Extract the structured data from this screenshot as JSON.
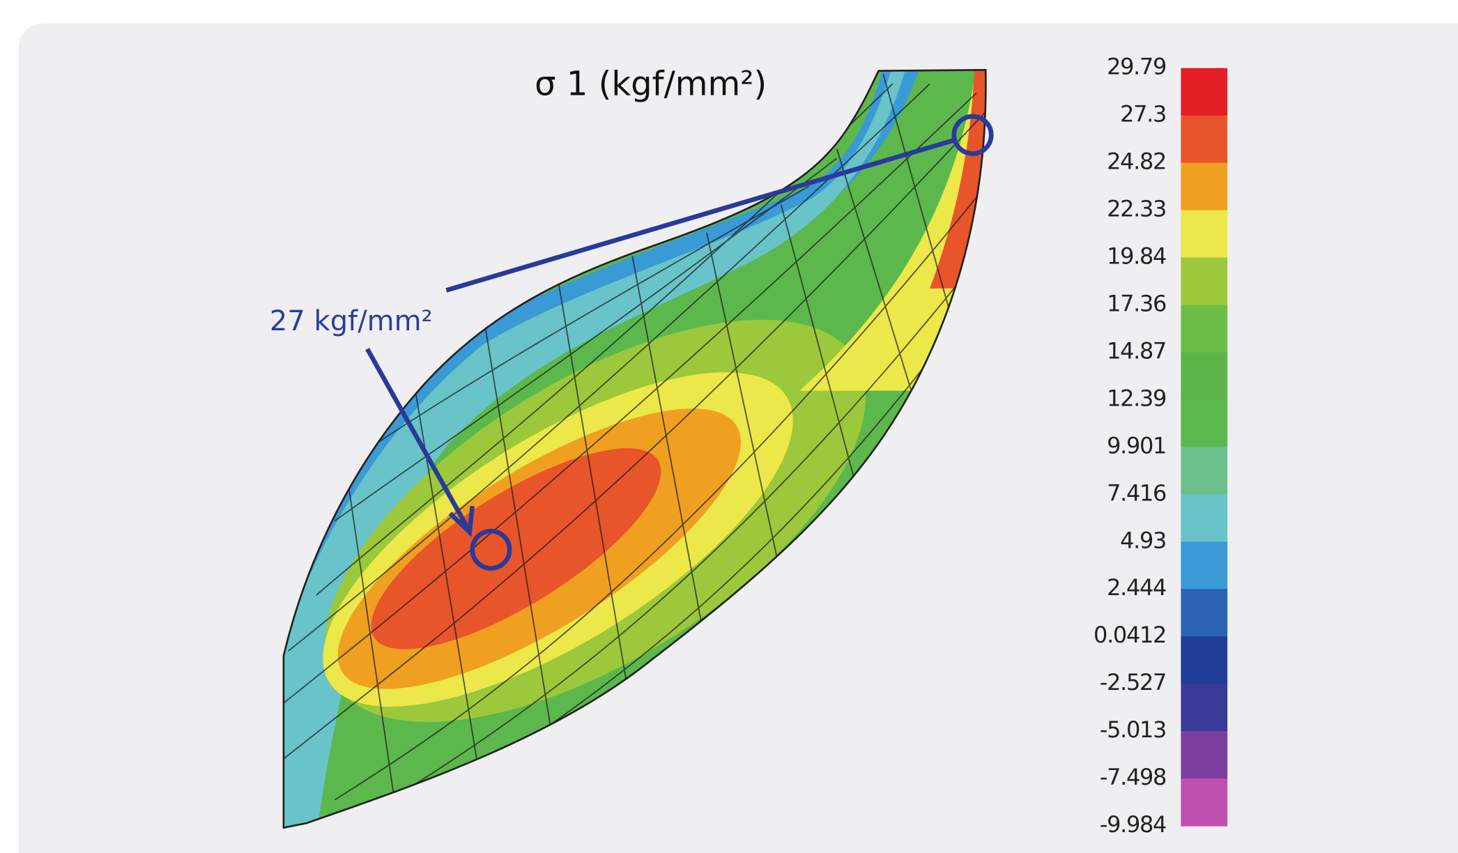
{
  "figure": {
    "title": "σ 1 (kgf/mm²)",
    "annotation": "27 kgf/mm²",
    "colorbar": {
      "ticks": [
        29.79,
        27.3,
        24.82,
        22.33,
        19.84,
        17.36,
        14.87,
        12.39,
        9.901,
        7.416,
        4.93,
        2.444,
        0.0412,
        -2.527,
        -5.013,
        -7.498,
        -9.984
      ],
      "colors": [
        "#e31e24",
        "#e8552a",
        "#f0a020",
        "#ece84a",
        "#9cc83c",
        "#6cbf44",
        "#5bb548",
        "#5cb84c",
        "#6dc08c",
        "#68c4c8",
        "#3a9ad6",
        "#2a62b4",
        "#1f3f98",
        "#3a3a98",
        "#7a3f9e",
        "#c050b0"
      ]
    }
  }
}
